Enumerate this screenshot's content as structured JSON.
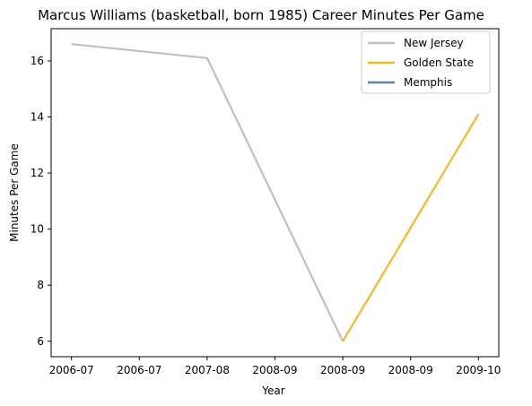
{
  "chart_data": {
    "type": "line",
    "title": "Marcus Williams (basketball, born 1985) Career Minutes Per Game",
    "xlabel": "Year",
    "ylabel": "Minutes Per Game",
    "x_tick_labels": [
      "2006-07",
      "2006-07",
      "2007-08",
      "2008-09",
      "2008-09",
      "2008-09",
      "2009-10"
    ],
    "y_ticks": [
      6,
      8,
      10,
      12,
      14,
      16
    ],
    "ylim": [
      5.45,
      17.15
    ],
    "grid": false,
    "legend_position": "top-right",
    "series": [
      {
        "name": "New Jersey",
        "color": "#bfbfbf",
        "x": [
          "2006-07",
          "2007-08",
          "2008-09"
        ],
        "values": [
          16.6,
          16.1,
          6.0
        ]
      },
      {
        "name": "Golden State",
        "color": "#f5b828",
        "x": [
          "2008-09",
          "2009-10"
        ],
        "values": [
          6.0,
          14.1
        ]
      },
      {
        "name": "Memphis",
        "color": "#5b84b1",
        "x": [],
        "values": []
      }
    ]
  }
}
